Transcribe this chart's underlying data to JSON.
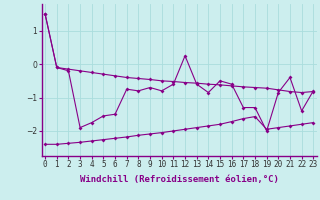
{
  "x": [
    0,
    1,
    2,
    3,
    4,
    5,
    6,
    7,
    8,
    9,
    10,
    11,
    12,
    13,
    14,
    15,
    16,
    17,
    18,
    19,
    20,
    21,
    22,
    23
  ],
  "y_main": [
    1.5,
    -0.1,
    -0.2,
    -1.9,
    -1.75,
    -1.55,
    -1.5,
    -0.75,
    -0.8,
    -0.7,
    -0.8,
    -0.6,
    0.25,
    -0.6,
    -0.85,
    -0.5,
    -0.6,
    -1.3,
    -1.3,
    -2.0,
    -0.85,
    -0.4,
    -1.4,
    -0.8
  ],
  "y_upper": [
    1.5,
    -0.1,
    -0.15,
    -0.2,
    -0.25,
    -0.3,
    -0.35,
    -0.4,
    -0.43,
    -0.46,
    -0.5,
    -0.52,
    -0.55,
    -0.57,
    -0.6,
    -0.62,
    -0.65,
    -0.68,
    -0.7,
    -0.72,
    -0.77,
    -0.82,
    -0.85,
    -0.82
  ],
  "y_lower": [
    -2.4,
    -2.4,
    -2.37,
    -2.34,
    -2.3,
    -2.26,
    -2.22,
    -2.18,
    -2.13,
    -2.09,
    -2.05,
    -2.0,
    -1.95,
    -1.9,
    -1.85,
    -1.8,
    -1.72,
    -1.63,
    -1.57,
    -1.95,
    -1.9,
    -1.85,
    -1.8,
    -1.75
  ],
  "line_color": "#880088",
  "bg_color": "#cceeee",
  "grid_color": "#aadddd",
  "xlabel": "Windchill (Refroidissement éolien,°C)",
  "xlabel_fontsize": 6.5,
  "tick_fontsize": 5.5,
  "ylim": [
    -2.75,
    1.8
  ],
  "xlim": [
    -0.3,
    23.3
  ]
}
